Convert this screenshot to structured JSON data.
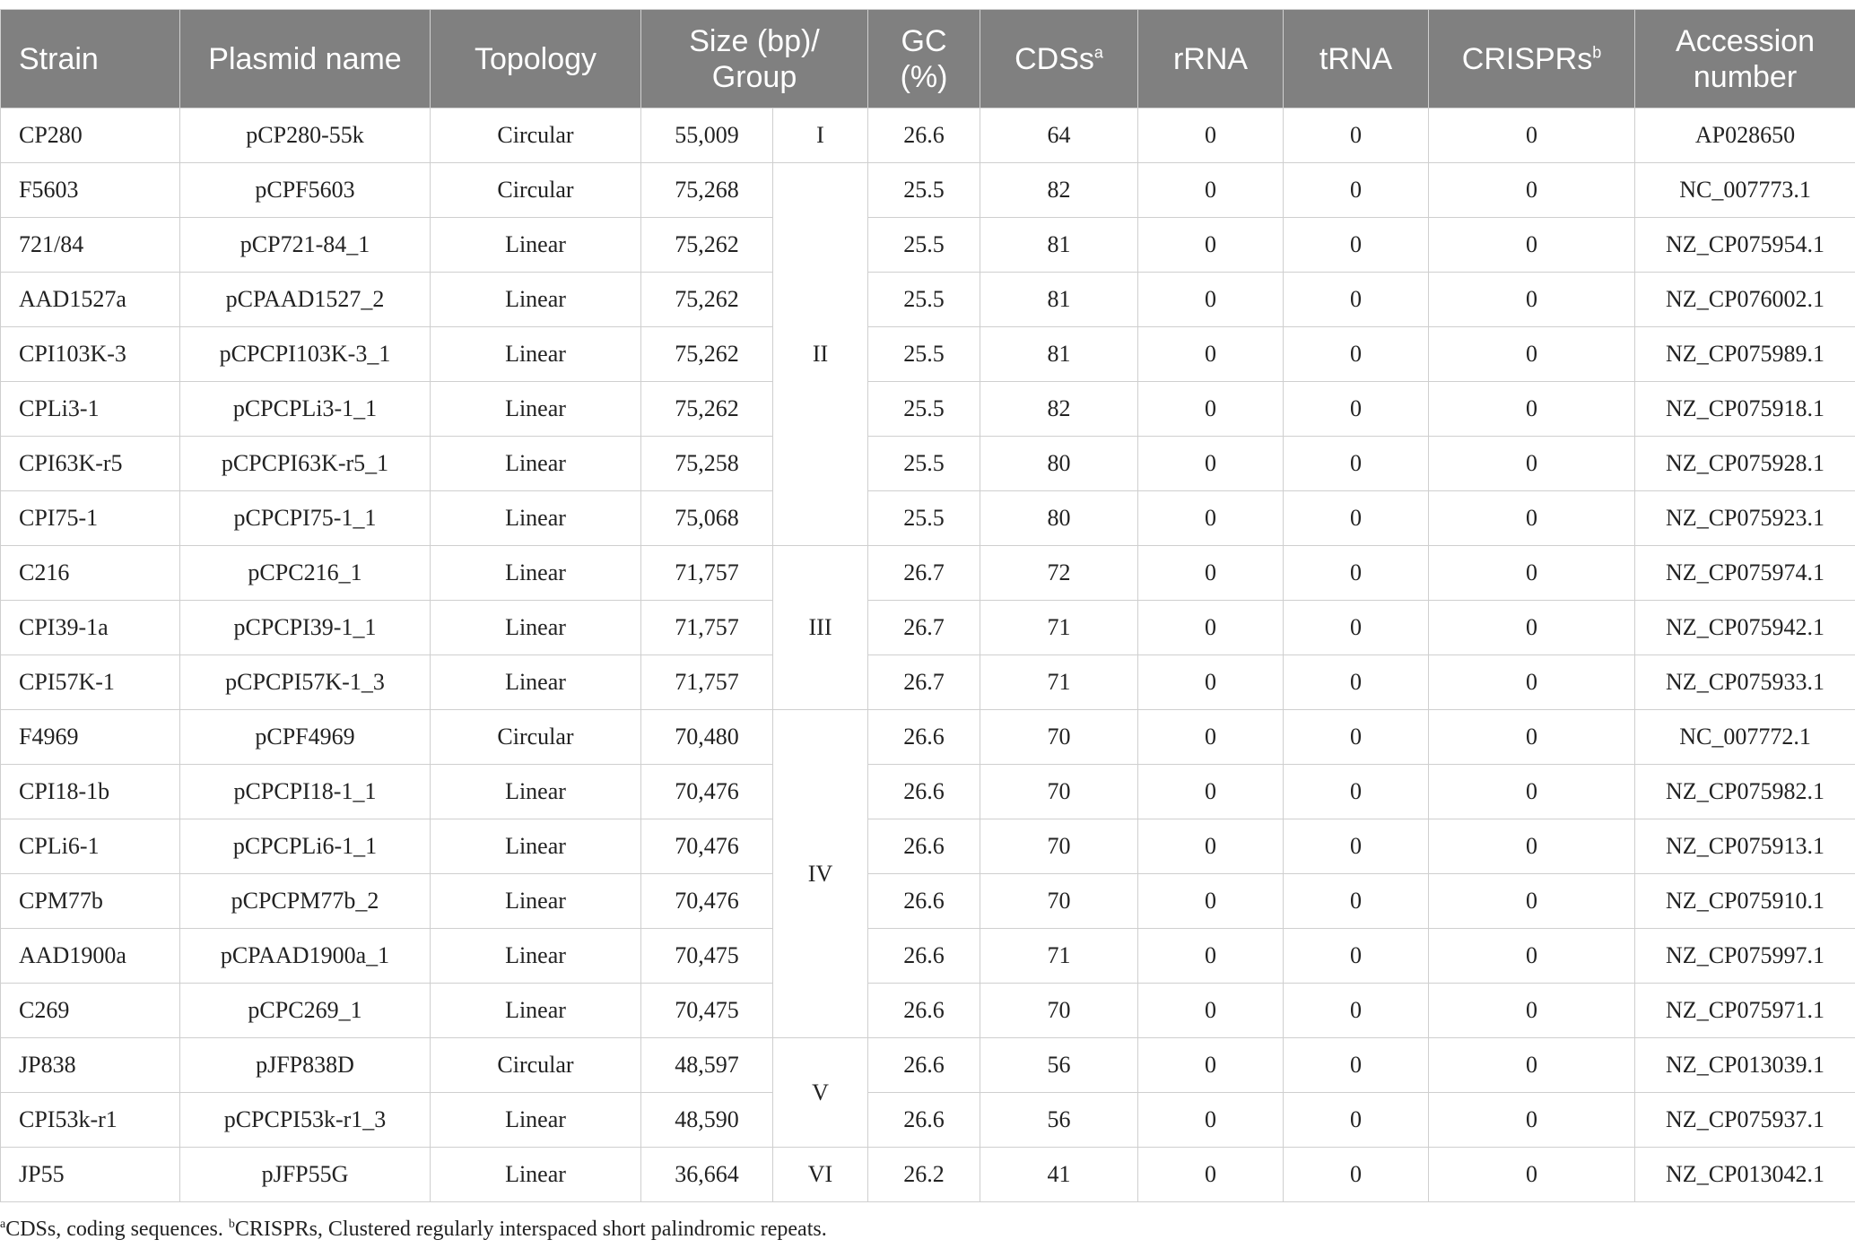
{
  "table": {
    "header": [
      {
        "text": "Strain"
      },
      {
        "text": "Plasmid name"
      },
      {
        "text": "Topology"
      },
      {
        "text": "Size (bp)/ Group"
      },
      {
        "text": "GC (%)"
      },
      {
        "text": "CDSs",
        "sup": "a"
      },
      {
        "text": "rRNA"
      },
      {
        "text": "tRNA"
      },
      {
        "text": "CRISPRs",
        "sup": "b"
      },
      {
        "text": "Accession number"
      }
    ],
    "rows": [
      [
        "CP280",
        "pCP280-55k",
        "Circular",
        "55,009",
        "26.6",
        "64",
        "0",
        "0",
        "0",
        "AP028650"
      ],
      [
        "F5603",
        "pCPF5603",
        "Circular",
        "75,268",
        "25.5",
        "82",
        "0",
        "0",
        "0",
        "NC_007773.1"
      ],
      [
        "721/84",
        "pCP721-84_1",
        "Linear",
        "75,262",
        "25.5",
        "81",
        "0",
        "0",
        "0",
        "NZ_CP075954.1"
      ],
      [
        "AAD1527a",
        "pCPAAD1527_2",
        "Linear",
        "75,262",
        "25.5",
        "81",
        "0",
        "0",
        "0",
        "NZ_CP076002.1"
      ],
      [
        "CPI103K-3",
        "pCPCPI103K-3_1",
        "Linear",
        "75,262",
        "25.5",
        "81",
        "0",
        "0",
        "0",
        "NZ_CP075989.1"
      ],
      [
        "CPLi3-1",
        "pCPCPLi3-1_1",
        "Linear",
        "75,262",
        "25.5",
        "82",
        "0",
        "0",
        "0",
        "NZ_CP075918.1"
      ],
      [
        "CPI63K-r5",
        "pCPCPI63K-r5_1",
        "Linear",
        "75,258",
        "25.5",
        "80",
        "0",
        "0",
        "0",
        "NZ_CP075928.1"
      ],
      [
        "CPI75-1",
        "pCPCPI75-1_1",
        "Linear",
        "75,068",
        "25.5",
        "80",
        "0",
        "0",
        "0",
        "NZ_CP075923.1"
      ],
      [
        "C216",
        "pCPC216_1",
        "Linear",
        "71,757",
        "26.7",
        "72",
        "0",
        "0",
        "0",
        "NZ_CP075974.1"
      ],
      [
        "CPI39-1a",
        "pCPCPI39-1_1",
        "Linear",
        "71,757",
        "26.7",
        "71",
        "0",
        "0",
        "0",
        "NZ_CP075942.1"
      ],
      [
        "CPI57K-1",
        "pCPCPI57K-1_3",
        "Linear",
        "71,757",
        "26.7",
        "71",
        "0",
        "0",
        "0",
        "NZ_CP075933.1"
      ],
      [
        "F4969",
        "pCPF4969",
        "Circular",
        "70,480",
        "26.6",
        "70",
        "0",
        "0",
        "0",
        "NC_007772.1"
      ],
      [
        "CPI18-1b",
        "pCPCPI18-1_1",
        "Linear",
        "70,476",
        "26.6",
        "70",
        "0",
        "0",
        "0",
        "NZ_CP075982.1"
      ],
      [
        "CPLi6-1",
        "pCPCPLi6-1_1",
        "Linear",
        "70,476",
        "26.6",
        "70",
        "0",
        "0",
        "0",
        "NZ_CP075913.1"
      ],
      [
        "CPM77b",
        "pCPCPM77b_2",
        "Linear",
        "70,476",
        "26.6",
        "70",
        "0",
        "0",
        "0",
        "NZ_CP075910.1"
      ],
      [
        "AAD1900a",
        "pCPAAD1900a_1",
        "Linear",
        "70,475",
        "26.6",
        "71",
        "0",
        "0",
        "0",
        "NZ_CP075997.1"
      ],
      [
        "C269",
        "pCPC269_1",
        "Linear",
        "70,475",
        "26.6",
        "70",
        "0",
        "0",
        "0",
        "NZ_CP075971.1"
      ],
      [
        "JP838",
        "pJFP838D",
        "Circular",
        "48,597",
        "26.6",
        "56",
        "0",
        "0",
        "0",
        "NZ_CP013039.1"
      ],
      [
        "CPI53k-r1",
        "pCPCPI53k-r1_3",
        "Linear",
        "48,590",
        "26.6",
        "56",
        "0",
        "0",
        "0",
        "NZ_CP075937.1"
      ],
      [
        "JP55",
        "pJFP55G",
        "Linear",
        "36,664",
        "26.2",
        "41",
        "0",
        "0",
        "0",
        "NZ_CP013042.1"
      ]
    ],
    "groups": [
      {
        "label": "I",
        "rows": 1
      },
      {
        "label": "II",
        "rows": 7
      },
      {
        "label": "III",
        "rows": 3
      },
      {
        "label": "IV",
        "rows": 6
      },
      {
        "label": "V",
        "rows": 2
      },
      {
        "label": "VI",
        "rows": 1
      }
    ]
  },
  "footnote": [
    {
      "sup": "a",
      "text": "CDSs, coding sequences. "
    },
    {
      "sup": "b",
      "text": "CRISPRs, Clustered regularly interspaced short palindromic repeats."
    }
  ]
}
